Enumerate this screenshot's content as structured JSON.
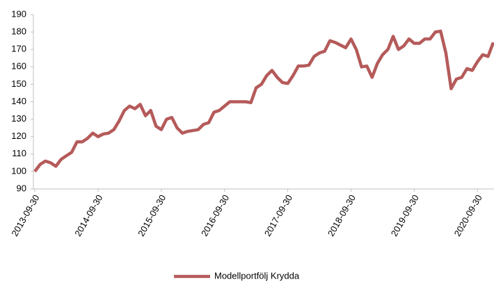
{
  "chart_data": {
    "type": "line",
    "categories": [
      "2013-09-30",
      null,
      null,
      null,
      null,
      null,
      null,
      null,
      null,
      null,
      null,
      null,
      "2014-09-30",
      null,
      null,
      null,
      null,
      null,
      null,
      null,
      null,
      null,
      null,
      null,
      "2015-09-30",
      null,
      null,
      null,
      null,
      null,
      null,
      null,
      null,
      null,
      null,
      null,
      "2016-09-30",
      null,
      null,
      null,
      null,
      null,
      null,
      null,
      null,
      null,
      null,
      null,
      "2017-09-30",
      null,
      null,
      null,
      null,
      null,
      null,
      null,
      null,
      null,
      null,
      null,
      "2018-09-30",
      null,
      null,
      null,
      null,
      null,
      null,
      null,
      null,
      null,
      null,
      null,
      "2019-09-30",
      null,
      null,
      null,
      null,
      null,
      null,
      null,
      null,
      null,
      null,
      null,
      "2020-09-30",
      null,
      null,
      null
    ],
    "series": [
      {
        "name": "Modellportfölj Krydda",
        "color": "#b55a5a",
        "values": [
          100,
          104,
          106,
          105,
          103,
          107,
          109,
          111,
          117,
          117,
          119,
          122,
          120,
          121.5,
          122,
          124,
          129,
          135,
          137.5,
          136,
          138.5,
          132,
          135,
          126,
          124,
          130,
          131,
          125,
          122,
          123,
          123.5,
          124,
          127,
          128,
          134,
          135,
          137.5,
          140,
          140,
          140,
          140,
          139.5,
          148,
          150,
          155,
          158,
          154,
          151,
          150.5,
          155,
          160.5,
          160.5,
          161,
          166,
          168,
          169,
          175,
          174,
          172.5,
          171,
          176,
          170,
          160,
          160.5,
          154,
          162,
          167,
          170,
          177.5,
          170,
          172,
          176,
          173.5,
          173.5,
          176,
          176,
          180,
          180.5,
          168,
          147.5,
          153,
          154,
          159,
          158,
          163,
          167,
          166,
          174
        ]
      }
    ],
    "ylim": [
      90,
      190
    ],
    "yticks": [
      90,
      100,
      110,
      120,
      130,
      140,
      150,
      160,
      170,
      180,
      190
    ],
    "grid": false,
    "legend": "bottom"
  }
}
